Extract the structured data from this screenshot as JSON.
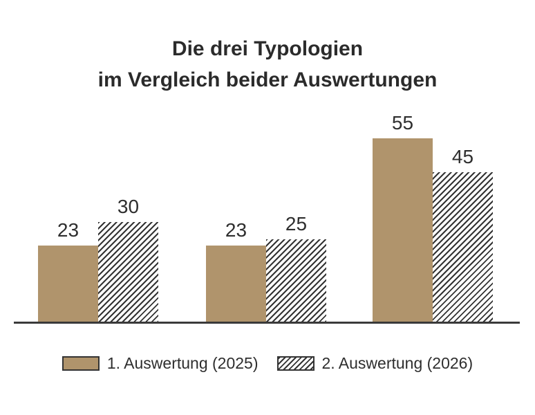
{
  "chart_data": {
    "type": "bar",
    "title": "Die drei Typologien im Vergleich beider Auswertungen",
    "title_lines": [
      "Die drei Typologien",
      "im Vergleich beider Auswertungen"
    ],
    "categories": [
      "",
      "",
      ""
    ],
    "series": [
      {
        "name": "1. Auswertung (2025)",
        "style": "solid",
        "color": "#b0946c",
        "values": [
          23,
          23,
          55
        ]
      },
      {
        "name": "2. Auswertung (2026)",
        "style": "hatched",
        "hatch_line_color": "#333333",
        "values": [
          30,
          25,
          45
        ]
      }
    ],
    "data_labels": [
      [
        "23",
        "23",
        "55"
      ],
      [
        "30",
        "25",
        "45"
      ]
    ],
    "ylim": [
      0,
      60
    ],
    "grid": false,
    "axis_line_color": "#3a3a3a",
    "legend_position": "bottom",
    "xlabel": "",
    "ylabel": ""
  },
  "colors": {
    "background": "#ffffff",
    "title_text": "#2b2b2b",
    "label_text": "#2e2e2e",
    "solid_bar": "#b0946c",
    "hatch_line": "#333333",
    "axis_line": "#3a3a3a"
  }
}
